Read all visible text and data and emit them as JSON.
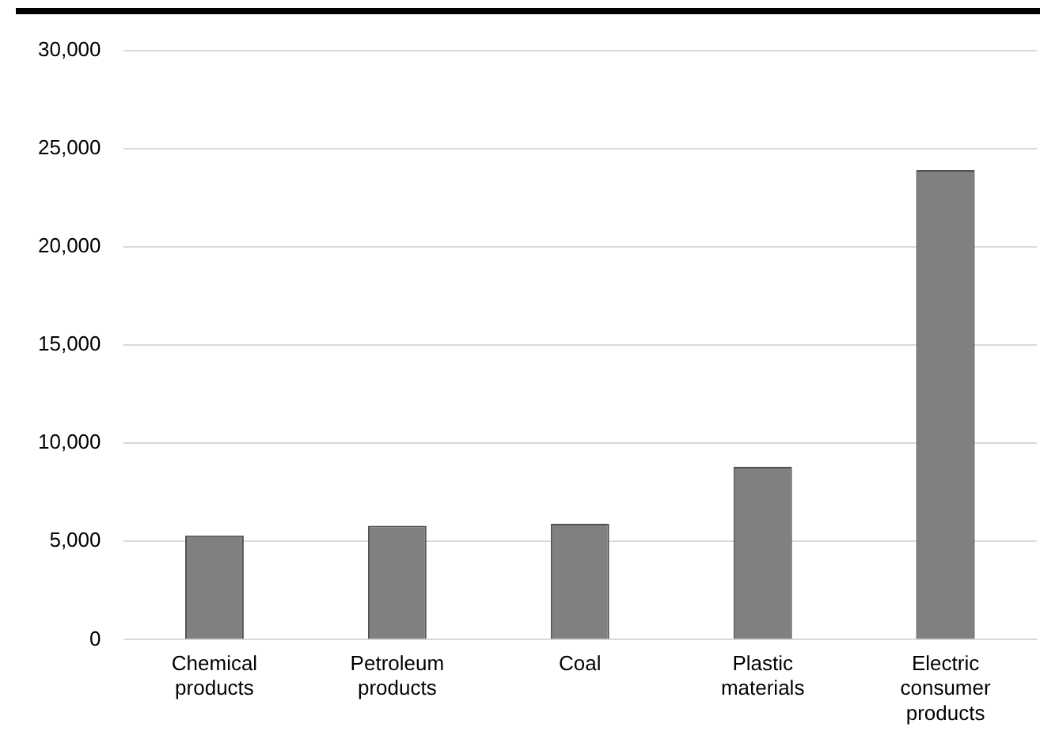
{
  "chart_data": {
    "type": "bar",
    "categories": [
      "Chemical products",
      "Petroleum products",
      "Coal",
      "Plastic materials",
      "Electric consumer products"
    ],
    "values": [
      5300,
      5800,
      5900,
      8800,
      23900
    ],
    "color": "#808080",
    "ylim": [
      0,
      30000
    ],
    "yticks": [
      0,
      {
        "value": 5000,
        "label": "5,000"
      },
      {
        "value": 10000,
        "label": "10,000"
      },
      {
        "value": 15000,
        "label": "15,000"
      },
      {
        "value": 20000,
        "label": "20,000"
      },
      {
        "value": 25000,
        "label": "25,000"
      },
      {
        "value": 30000,
        "label": "30,000"
      }
    ],
    "grid": "y",
    "legend": false
  }
}
